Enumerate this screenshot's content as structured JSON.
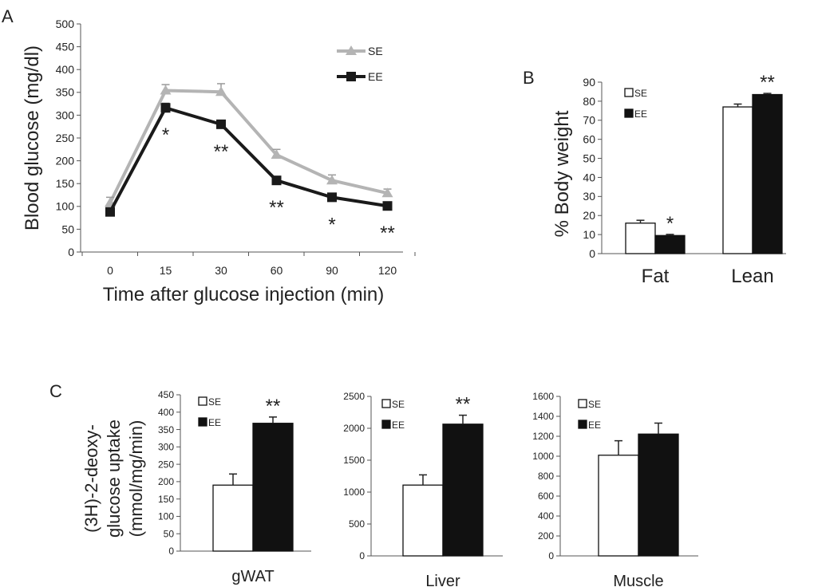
{
  "chart_data": [
    {
      "panel": "A",
      "type": "line",
      "xlabel": "Time after glucose injection (min)",
      "ylabel": "Blood glucose (mg/dl)",
      "categories": [
        "0",
        "15",
        "30",
        "60",
        "90",
        "120"
      ],
      "ylim": [
        0,
        500
      ],
      "yticks": [
        0,
        50,
        100,
        150,
        200,
        250,
        300,
        350,
        400,
        450,
        500
      ],
      "legend_position": "top-right",
      "series": [
        {
          "name": "SE",
          "color": "#b4b4b4",
          "marker": "triangle",
          "values": [
            108,
            354,
            351,
            213,
            157,
            129
          ],
          "errors": [
            12,
            13,
            18,
            12,
            12,
            9
          ]
        },
        {
          "name": "EE",
          "color": "#1a1a1a",
          "marker": "square",
          "values": [
            88,
            316,
            280,
            157,
            120,
            101
          ],
          "errors": [
            8,
            10,
            8,
            6,
            8,
            6
          ]
        }
      ],
      "significance": [
        "",
        "*",
        "**",
        "**",
        "*",
        "**"
      ]
    },
    {
      "panel": "B",
      "type": "bar",
      "ylabel": "% Body weight",
      "categories": [
        "Fat",
        "Lean"
      ],
      "ylim": [
        0,
        90
      ],
      "yticks": [
        0,
        10,
        20,
        30,
        40,
        50,
        60,
        70,
        80,
        90
      ],
      "legend_position": "top-left",
      "series": [
        {
          "name": "SE",
          "color": "#ffffff",
          "values": [
            16,
            77
          ],
          "errors": [
            1.5,
            1.5
          ]
        },
        {
          "name": "EE",
          "color": "#111111",
          "values": [
            9.5,
            83.5
          ],
          "errors": [
            0.6,
            0.6
          ]
        }
      ],
      "significance": [
        "*",
        "**"
      ]
    },
    {
      "panel": "C",
      "type": "bar",
      "ylabel_lines": [
        "(3H)-2-deoxy-",
        "glucose uptake",
        "(mmol/mg/min)"
      ],
      "categories": [
        "gWAT"
      ],
      "ylim": [
        0,
        450
      ],
      "yticks": [
        0,
        50,
        100,
        150,
        200,
        250,
        300,
        350,
        400,
        450
      ],
      "legend_position": "top-left",
      "series": [
        {
          "name": "SE",
          "color": "#ffffff",
          "values": [
            190
          ],
          "errors": [
            32
          ]
        },
        {
          "name": "EE",
          "color": "#111111",
          "values": [
            368
          ],
          "errors": [
            18
          ]
        }
      ],
      "significance": [
        "**"
      ]
    },
    {
      "panel": "C",
      "type": "bar",
      "categories": [
        "Liver"
      ],
      "ylim": [
        0,
        2500
      ],
      "yticks": [
        0,
        500,
        1000,
        1500,
        2000,
        2500
      ],
      "legend_position": "top-left",
      "series": [
        {
          "name": "SE",
          "color": "#ffffff",
          "values": [
            1110
          ],
          "errors": [
            160
          ]
        },
        {
          "name": "EE",
          "color": "#111111",
          "values": [
            2065
          ],
          "errors": [
            140
          ]
        }
      ],
      "significance": [
        "**"
      ]
    },
    {
      "panel": "C",
      "type": "bar",
      "categories": [
        "Muscle"
      ],
      "ylim": [
        0,
        1600
      ],
      "yticks": [
        0,
        200,
        400,
        600,
        800,
        1000,
        1200,
        1400,
        1600
      ],
      "legend_position": "top-left",
      "series": [
        {
          "name": "SE",
          "color": "#ffffff",
          "values": [
            1010
          ],
          "errors": [
            145
          ]
        },
        {
          "name": "EE",
          "color": "#111111",
          "values": [
            1222
          ],
          "errors": [
            110
          ]
        }
      ],
      "significance": [
        ""
      ]
    }
  ]
}
